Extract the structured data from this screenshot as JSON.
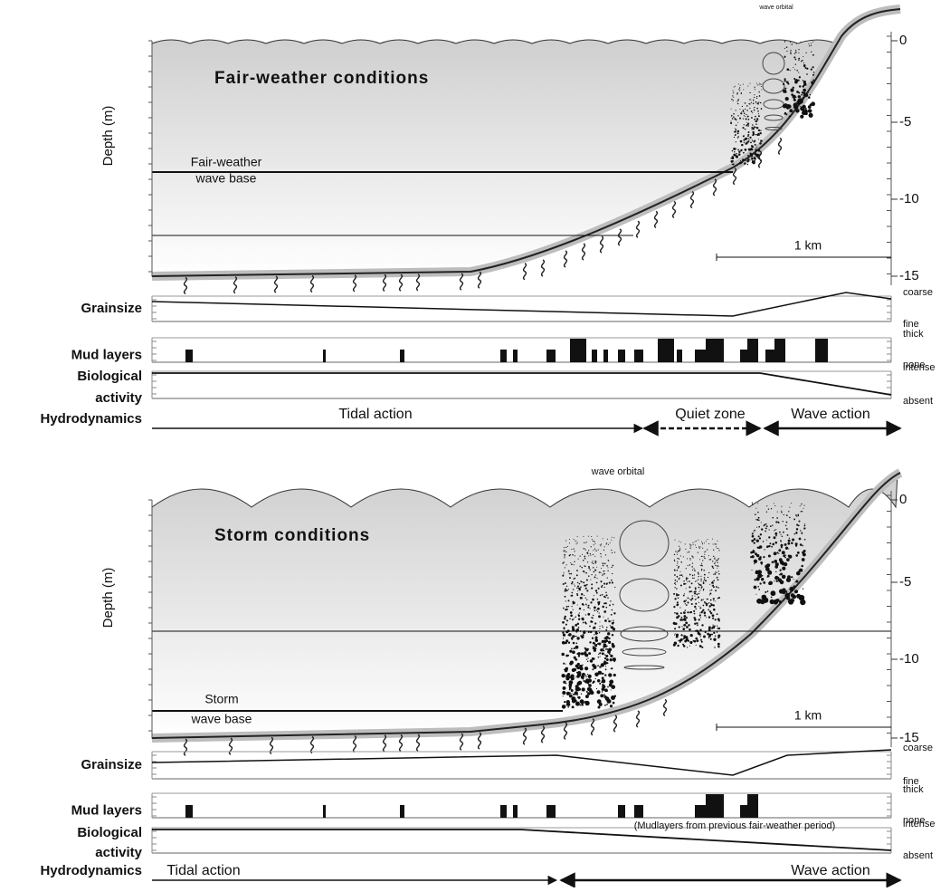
{
  "panels": [
    {
      "title": "Fair-weather conditions",
      "wave_orbital": "wave orbital",
      "depth_axis": {
        "label": "Depth (m)",
        "ticks": [
          "0",
          "-5",
          "-10",
          "-15"
        ]
      },
      "wave_base": [
        "Fair-weather",
        "wave base"
      ],
      "scale_bar": "1 km",
      "rows": {
        "grainsize": {
          "label": "Grainsize",
          "top": "coarse",
          "bottom": "fine"
        },
        "mud_layers": {
          "label": "Mud layers",
          "top": "thick",
          "bottom": "none"
        },
        "biological_activity": {
          "label": [
            "Biological",
            "activity"
          ],
          "top": "intense",
          "bottom": "absent"
        },
        "hydrodynamics": {
          "label": "Hydrodynamics",
          "zones": [
            "Tidal action",
            "Quiet zone",
            "Wave action"
          ]
        }
      }
    },
    {
      "title": "Storm conditions",
      "wave_orbital": "wave orbital",
      "depth_axis": {
        "label": "Depth (m)",
        "ticks": [
          "0",
          "-5",
          "-10",
          "-15"
        ]
      },
      "wave_base": [
        "Storm",
        "wave base"
      ],
      "scale_bar": "1 km",
      "rows": {
        "grainsize": {
          "label": "Grainsize",
          "top": "coarse",
          "bottom": "fine"
        },
        "mud_layers": {
          "label": "Mud layers",
          "top": "thick",
          "bottom": "none"
        },
        "biological_activity": {
          "label": [
            "Biological",
            "activity"
          ],
          "top": "intense",
          "bottom": "absent",
          "note": "(Mudlayers from previous fair-weather period)"
        },
        "hydrodynamics": {
          "label": "Hydrodynamics",
          "zones": [
            "Tidal action",
            "Wave action"
          ]
        }
      }
    }
  ]
}
